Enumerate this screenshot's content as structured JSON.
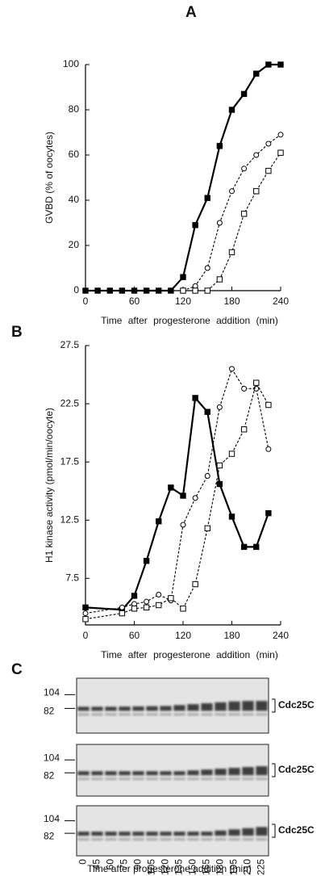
{
  "chart_data": [
    {
      "type": "line",
      "panel_label": "A",
      "ylabel": "GVBD (% of oocytes)",
      "xlabel": "Time after progesterone addition (min)",
      "xlim": [
        0,
        240
      ],
      "xticks": [
        0,
        60,
        120,
        180,
        240
      ],
      "ylim": [
        0,
        100
      ],
      "yticks": [
        0,
        20,
        40,
        60,
        80,
        100
      ],
      "series": [
        {
          "marker": "filled-square",
          "linestyle": "solid",
          "color": "#000000",
          "x": [
            0,
            15,
            30,
            45,
            60,
            75,
            90,
            105,
            120,
            135,
            150,
            165,
            180,
            195,
            210,
            225,
            240
          ],
          "values": [
            0,
            0,
            0,
            0,
            0,
            0,
            0,
            0,
            6,
            29,
            41,
            64,
            80,
            87,
            96,
            100,
            100
          ]
        },
        {
          "marker": "open-circle",
          "linestyle": "dashed",
          "color": "#000000",
          "x": [
            120,
            135,
            150,
            165,
            180,
            195,
            210,
            225,
            240
          ],
          "values": [
            0,
            2,
            10,
            30,
            44,
            54,
            60,
            65,
            69
          ]
        },
        {
          "marker": "open-square",
          "linestyle": "dashed",
          "color": "#000000",
          "x": [
            120,
            135,
            150,
            165,
            180,
            195,
            210,
            225,
            240
          ],
          "values": [
            0,
            0,
            0,
            5,
            17,
            34,
            44,
            53,
            61
          ]
        }
      ]
    },
    {
      "type": "line",
      "panel_label": "B",
      "ylabel": "H1  kinase  activity  (pmol/min/oocyte)",
      "xlabel": "Time after progesterone addition (min)",
      "xlim": [
        0,
        240
      ],
      "xticks": [
        0,
        60,
        120,
        180,
        240
      ],
      "ylim": [
        3.5,
        27.5
      ],
      "yticks": [
        7.5,
        12.5,
        17.5,
        22.5,
        27.5
      ],
      "series": [
        {
          "marker": "filled-square",
          "linestyle": "solid",
          "color": "#000000",
          "x": [
            0,
            45,
            60,
            75,
            90,
            105,
            120,
            135,
            150,
            165,
            180,
            195,
            210,
            225
          ],
          "values": [
            5.0,
            4.8,
            6.0,
            9.0,
            12.4,
            15.3,
            14.6,
            23.0,
            21.8,
            15.6,
            12.8,
            10.2,
            10.2,
            13.1
          ]
        },
        {
          "marker": "open-circle",
          "linestyle": "dashed",
          "color": "#000000",
          "x": [
            0,
            45,
            60,
            75,
            90,
            105,
            120,
            135,
            150,
            165,
            180,
            195,
            210,
            225
          ],
          "values": [
            4.5,
            5.0,
            5.3,
            5.5,
            6.1,
            5.6,
            12.1,
            14.4,
            16.3,
            22.2,
            25.5,
            23.8,
            23.8,
            18.6
          ]
        },
        {
          "marker": "open-square",
          "linestyle": "dashed",
          "color": "#000000",
          "x": [
            0,
            45,
            60,
            75,
            90,
            105,
            120,
            135,
            150,
            165,
            180,
            195,
            210,
            225
          ],
          "values": [
            4.0,
            4.5,
            4.9,
            5.0,
            5.2,
            5.8,
            4.9,
            7.0,
            11.8,
            17.2,
            18.2,
            20.3,
            24.3,
            22.4
          ]
        }
      ]
    }
  ],
  "gel": {
    "panel_label": "C",
    "markers": [
      "104",
      "82"
    ],
    "band_label": "Cdc25C",
    "lanes": [
      "0",
      "45",
      "60",
      "75",
      "90",
      "105",
      "120",
      "135",
      "150",
      "165",
      "180",
      "195",
      "210",
      "225"
    ],
    "xlabel": "Time after progesterone addition (min)"
  }
}
